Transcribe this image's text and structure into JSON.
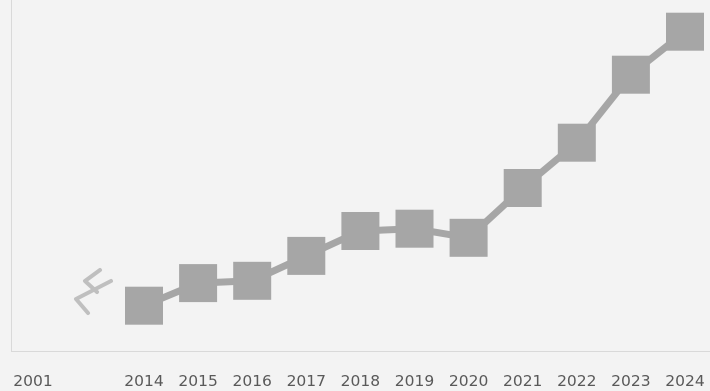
{
  "chart_data": {
    "type": "line",
    "title": "",
    "xlabel": "",
    "ylabel": "",
    "grid": false,
    "legend": "none",
    "axis_break": true,
    "categories": [
      "2001",
      "2014",
      "2015",
      "2016",
      "2017",
      "2018",
      "2019",
      "2020",
      "2021",
      "2022",
      "2023",
      "2024"
    ],
    "x": [
      "2014",
      "2015",
      "2016",
      "2017",
      "2018",
      "2019",
      "2020",
      "2021",
      "2022",
      "2023",
      "2024"
    ],
    "values": [
      2.0,
      3.0,
      3.1,
      4.2,
      5.3,
      5.4,
      5.0,
      7.2,
      9.2,
      12.2,
      14.1
    ],
    "ylim": [
      0,
      15.5
    ],
    "colors": {
      "line": "#a6a6a6",
      "marker": "#a6a6a6",
      "break": "#bfbfbf",
      "axis": "#d9d9d9",
      "background": "#f3f3f3",
      "label": "#595959"
    }
  }
}
